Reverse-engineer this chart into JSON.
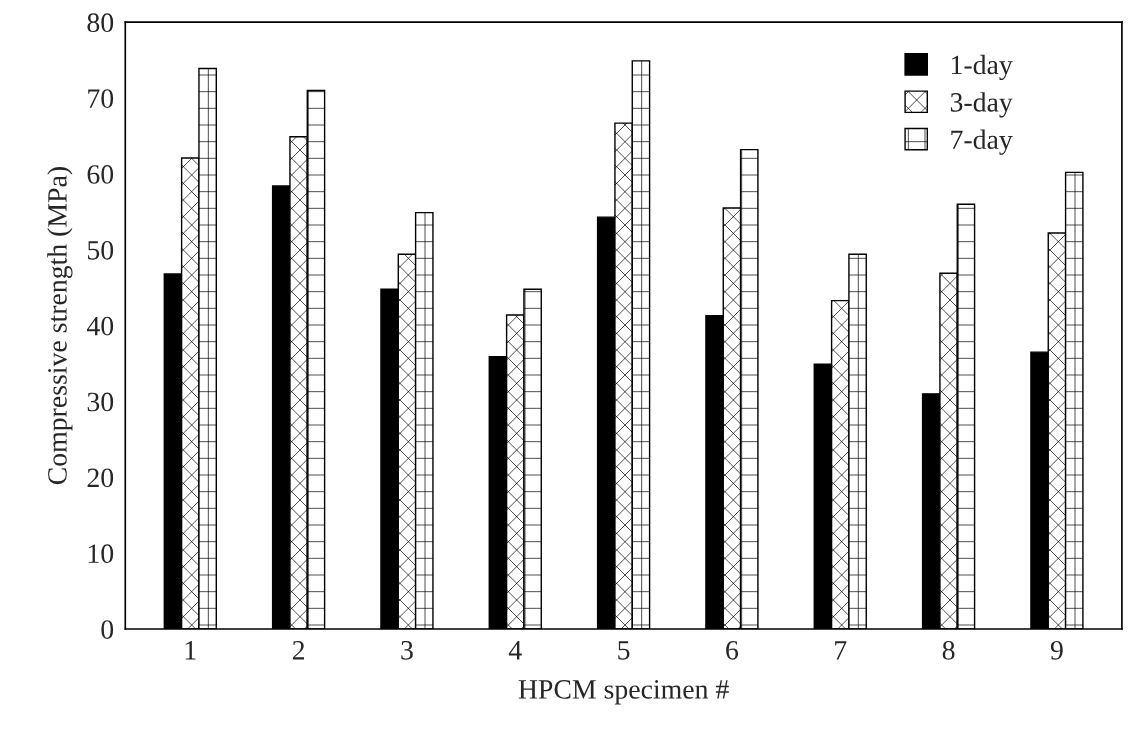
{
  "chart_data": {
    "type": "bar",
    "xlabel": "HPCM specimen #",
    "ylabel": "Compressive strength (MPa)",
    "categories": [
      "1",
      "2",
      "3",
      "4",
      "5",
      "6",
      "7",
      "8",
      "9"
    ],
    "series": [
      {
        "name": "1-day",
        "color": "#000000",
        "values": [
          46.8,
          58.4,
          44.8,
          35.9,
          54.3,
          41.3,
          34.9,
          31.0,
          36.5
        ]
      },
      {
        "name": "3-day",
        "color": "#ffffff",
        "values": [
          62.1,
          64.9,
          49.4,
          41.4,
          66.7,
          55.5,
          43.3,
          46.9,
          52.2
        ]
      },
      {
        "name": "7-day",
        "color": "#ffffff",
        "values": [
          73.9,
          71.0,
          54.9,
          44.8,
          74.9,
          63.2,
          49.4,
          56.0,
          60.2
        ]
      }
    ],
    "ylim": [
      0,
      80
    ],
    "yticks": [
      0,
      10,
      20,
      30,
      40,
      50,
      60,
      70,
      80
    ],
    "grid": false,
    "legend": "top right"
  }
}
